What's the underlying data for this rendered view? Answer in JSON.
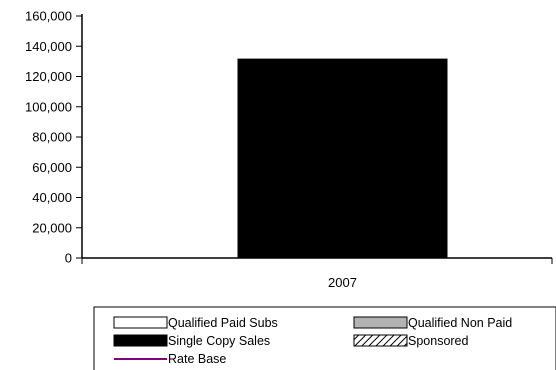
{
  "chart_data": {
    "type": "bar",
    "categories": [
      "2007"
    ],
    "series": [
      {
        "name": "Qualified Paid Subs",
        "values": [
          0
        ]
      },
      {
        "name": "Qualified Non Paid",
        "values": [
          0
        ]
      },
      {
        "name": "Single Copy Sales",
        "values": [
          131500
        ]
      },
      {
        "name": "Sponsored",
        "values": [
          0
        ]
      },
      {
        "name": "Rate Base",
        "values": [
          null
        ]
      }
    ],
    "y_ticks": [
      "0",
      "20,000",
      "40,000",
      "60,000",
      "80,000",
      "100,000",
      "120,000",
      "140,000",
      "160,000"
    ],
    "ylim": [
      0,
      160000
    ],
    "title": "",
    "xlabel": "",
    "ylabel": "",
    "grid": false,
    "legend_position": "bottom",
    "legend": [
      {
        "label": "Qualified Paid Subs",
        "style": "outline"
      },
      {
        "label": "Qualified Non Paid",
        "style": "gray"
      },
      {
        "label": "Single Copy Sales",
        "style": "black"
      },
      {
        "label": "Sponsored",
        "style": "hatched"
      },
      {
        "label": "Rate Base",
        "style": "line"
      }
    ],
    "colors": {
      "single_copy_sales": "#000000",
      "qualified_non_paid": "#b3b3b3",
      "qualified_paid_subs": "#ffffff",
      "rate_base": "#800080"
    }
  }
}
